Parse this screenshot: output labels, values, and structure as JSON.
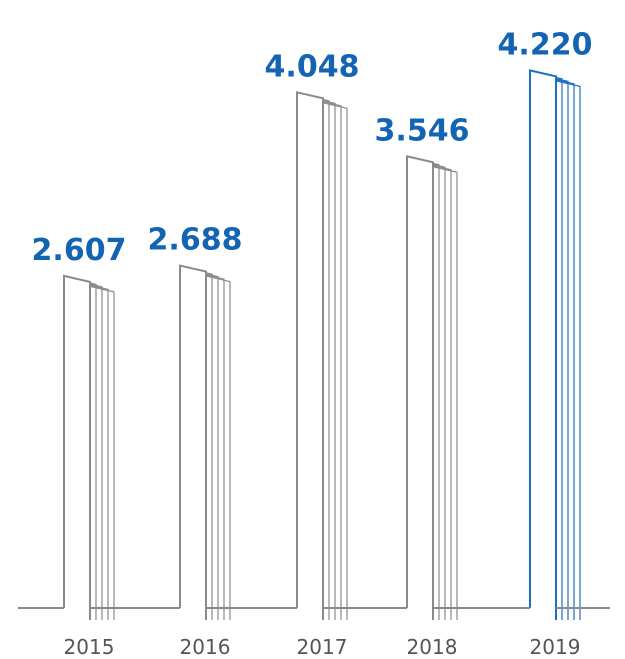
{
  "chart_data": {
    "type": "bar",
    "categories": [
      "2015",
      "2016",
      "2017",
      "2018",
      "2019"
    ],
    "values": [
      2.607,
      2.688,
      4.048,
      3.546,
      4.22
    ],
    "value_labels": [
      "2.607",
      "2.688",
      "4.048",
      "3.546",
      "4.220"
    ],
    "title": "",
    "xlabel": "",
    "ylabel": "",
    "ylim": [
      0,
      4.6
    ],
    "grid": false,
    "legend": "none",
    "highlight_index": 4
  },
  "colors": {
    "label": "#1464b4",
    "bar": "#8a8a8a",
    "bar_highlight": "#1e6fc0",
    "baseline": "#8a8a8a",
    "tick_text": "#555555"
  }
}
